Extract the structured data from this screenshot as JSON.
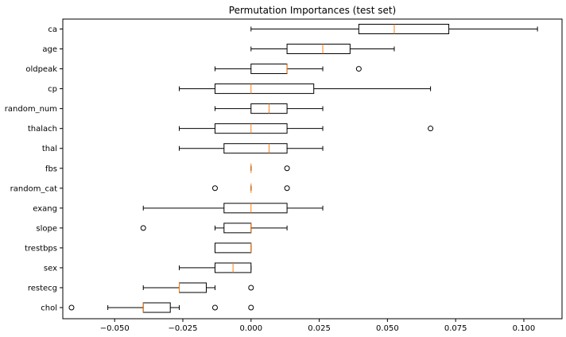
{
  "chart_data": {
    "type": "boxplot",
    "orientation": "horizontal",
    "title": "Permutation Importances (test set)",
    "xlabel": "",
    "ylabel": "",
    "xlim": [
      -0.069,
      0.114
    ],
    "xticks": [
      -0.05,
      -0.025,
      0.0,
      0.025,
      0.05,
      0.075,
      0.1
    ],
    "xtick_labels": [
      "−0.050",
      "−0.025",
      "0.000",
      "0.025",
      "0.050",
      "0.075",
      "0.100"
    ],
    "grid": false,
    "median_color": "#ff7f0e",
    "features": [
      {
        "name": "ca",
        "whislo": 0.0,
        "q1": 0.0395,
        "med": 0.0525,
        "q3": 0.0725,
        "whishi": 0.105,
        "fliers": []
      },
      {
        "name": "age",
        "whislo": 0.0,
        "q1": 0.0132,
        "med": 0.0263,
        "q3": 0.0363,
        "whishi": 0.0525,
        "fliers": []
      },
      {
        "name": "oldpeak",
        "whislo": -0.0132,
        "q1": 0.0,
        "med": 0.0132,
        "q3": 0.0132,
        "whishi": 0.0263,
        "fliers": [
          0.0395
        ]
      },
      {
        "name": "cp",
        "whislo": -0.0263,
        "q1": -0.0132,
        "med": 0.0,
        "q3": 0.023,
        "whishi": 0.0658,
        "fliers": []
      },
      {
        "name": "random_num",
        "whislo": -0.0132,
        "q1": 0.0,
        "med": 0.0066,
        "q3": 0.0132,
        "whishi": 0.0263,
        "fliers": []
      },
      {
        "name": "thalach",
        "whislo": -0.0263,
        "q1": -0.0132,
        "med": 0.0,
        "q3": 0.0132,
        "whishi": 0.0263,
        "fliers": [
          0.0658
        ]
      },
      {
        "name": "thal",
        "whislo": -0.0263,
        "q1": -0.0099,
        "med": 0.0066,
        "q3": 0.0132,
        "whishi": 0.0263,
        "fliers": []
      },
      {
        "name": "fbs",
        "whislo": 0.0,
        "q1": 0.0,
        "med": 0.0,
        "q3": 0.0,
        "whishi": 0.0,
        "fliers": [
          0.0132
        ]
      },
      {
        "name": "random_cat",
        "whislo": 0.0,
        "q1": 0.0,
        "med": 0.0,
        "q3": 0.0,
        "whishi": 0.0,
        "fliers": [
          -0.0132,
          0.0132
        ]
      },
      {
        "name": "exang",
        "whislo": -0.0395,
        "q1": -0.0099,
        "med": 0.0,
        "q3": 0.0132,
        "whishi": 0.0263,
        "fliers": []
      },
      {
        "name": "slope",
        "whislo": -0.0132,
        "q1": -0.0099,
        "med": 0.0,
        "q3": 0.0,
        "whishi": 0.0132,
        "fliers": [
          -0.0395
        ]
      },
      {
        "name": "trestbps",
        "whislo": -0.0132,
        "q1": -0.0132,
        "med": 0.0,
        "q3": 0.0,
        "whishi": 0.0,
        "fliers": []
      },
      {
        "name": "sex",
        "whislo": -0.0263,
        "q1": -0.0132,
        "med": -0.0066,
        "q3": 0.0,
        "whishi": 0.0,
        "fliers": []
      },
      {
        "name": "restecg",
        "whislo": -0.0395,
        "q1": -0.0263,
        "med": -0.0263,
        "q3": -0.0164,
        "whishi": -0.0132,
        "fliers": [
          0.0
        ]
      },
      {
        "name": "chol",
        "whislo": -0.0525,
        "q1": -0.0395,
        "med": -0.0395,
        "q3": -0.0296,
        "whishi": -0.0263,
        "fliers": [
          -0.0658,
          -0.0132,
          0.0
        ]
      }
    ]
  }
}
